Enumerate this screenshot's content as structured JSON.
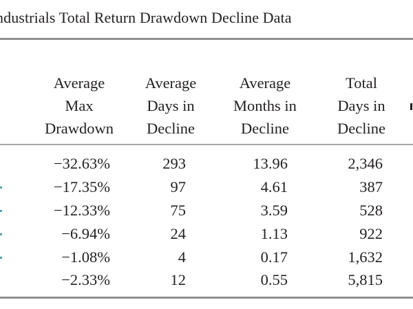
{
  "title": "ndustrials Total Return Drawdown Decline Data",
  "columns": [
    {
      "lines": [
        "Average",
        "Max",
        "Drawdown"
      ]
    },
    {
      "lines": [
        "Average",
        "Days in",
        "Decline"
      ]
    },
    {
      "lines": [
        "Average",
        "Months in",
        "Decline"
      ]
    },
    {
      "lines": [
        "Total",
        "Days in",
        "Decline"
      ]
    }
  ],
  "rows": [
    {
      "cells": [
        "−32.63%",
        "293",
        "13.96",
        "2,346"
      ]
    },
    {
      "cells": [
        "−17.35%",
        "97",
        "4.61",
        "387"
      ]
    },
    {
      "cells": [
        "−12.33%",
        "75",
        "3.59",
        "528"
      ]
    },
    {
      "cells": [
        "−6.94%",
        "24",
        "1.13",
        "922"
      ]
    },
    {
      "cells": [
        "−1.08%",
        "4",
        "0.17",
        "1,632"
      ]
    },
    {
      "cells": [
        "−2.33%",
        "12",
        "0.55",
        "5,815"
      ]
    }
  ],
  "colors": {
    "text": "#231f20",
    "rule": "#8f8f8f",
    "accent": "#4aa3b0"
  }
}
